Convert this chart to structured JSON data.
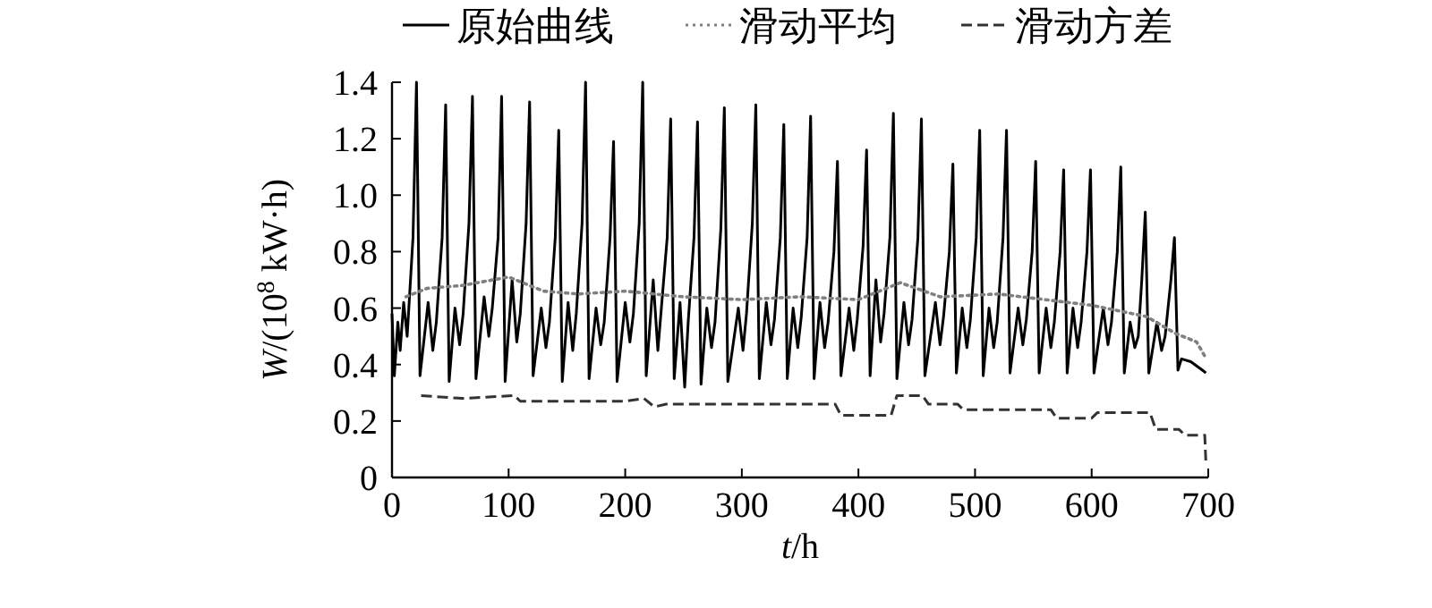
{
  "chart_data": {
    "type": "line",
    "xlabel": "*t*/h",
    "ylabel": "*W*/(10$^{8}$ kW·h)",
    "xlim": [
      0,
      700
    ],
    "xticks": [
      0,
      100,
      200,
      300,
      400,
      500,
      600,
      700
    ],
    "ylim": [
      0,
      1.4
    ],
    "yticks": [
      0,
      {
        "value": 0.2,
        "label": "0.2"
      },
      {
        "value": 0.4,
        "label": "0.4"
      },
      {
        "value": 0.6,
        "label": "0.6"
      },
      {
        "value": 0.8,
        "label": "0.8"
      },
      {
        "value": 1.0,
        "label": "1.0"
      },
      {
        "value": 1.2,
        "label": "1.2"
      },
      {
        "value": 1.4,
        "label": "1.4"
      }
    ],
    "legend": "top",
    "grid": false,
    "marker": "none",
    "series": [
      {
        "name": "原始曲线",
        "color": "#000000",
        "line_style": "solid",
        "x": [
          0,
          2,
          5,
          7,
          10,
          13,
          18,
          21,
          24,
          31,
          35,
          38,
          43,
          46,
          49,
          54,
          58,
          61,
          66,
          69,
          72,
          79,
          83,
          86,
          91,
          94,
          97,
          103,
          107,
          110,
          115,
          118,
          121,
          128,
          132,
          135,
          140,
          143,
          146,
          151,
          155,
          158,
          163,
          166,
          169,
          175,
          179,
          182,
          187,
          190,
          193,
          200,
          204,
          207,
          212,
          215,
          218,
          224,
          228,
          231,
          236,
          239,
          242,
          247,
          251,
          254,
          259,
          262,
          265,
          270,
          274,
          277,
          282,
          285,
          288,
          297,
          301,
          304,
          309,
          312,
          315,
          321,
          325,
          328,
          333,
          336,
          339,
          344,
          348,
          351,
          356,
          359,
          362,
          367,
          371,
          374,
          379,
          382,
          385,
          392,
          396,
          399,
          404,
          407,
          410,
          415,
          419,
          422,
          427,
          430,
          433,
          439,
          443,
          446,
          451,
          454,
          457,
          466,
          470,
          473,
          478,
          481,
          484,
          489,
          493,
          496,
          501,
          504,
          507,
          512,
          516,
          519,
          524,
          527,
          530,
          537,
          541,
          544,
          549,
          552,
          555,
          561,
          565,
          568,
          573,
          576,
          579,
          584,
          588,
          591,
          596,
          599,
          602,
          610,
          614,
          617,
          622,
          625,
          628,
          633,
          637,
          640,
          643,
          646,
          649,
          656,
          660,
          663,
          668,
          671,
          674,
          677,
          685,
          695,
          698
        ],
        "values": [
          0.58,
          0.36,
          0.55,
          0.45,
          0.62,
          0.5,
          0.85,
          1.4,
          0.36,
          0.62,
          0.45,
          0.55,
          0.85,
          1.32,
          0.34,
          0.6,
          0.47,
          0.58,
          0.9,
          1.35,
          0.35,
          0.64,
          0.5,
          0.6,
          0.85,
          1.35,
          0.34,
          0.7,
          0.48,
          0.58,
          0.9,
          1.33,
          0.36,
          0.6,
          0.46,
          0.55,
          0.85,
          1.23,
          0.34,
          0.62,
          0.45,
          0.58,
          0.9,
          1.4,
          0.35,
          0.6,
          0.47,
          0.55,
          0.85,
          1.19,
          0.34,
          0.62,
          0.48,
          0.58,
          0.9,
          1.4,
          0.36,
          0.7,
          0.45,
          0.6,
          0.85,
          1.27,
          0.35,
          0.62,
          0.32,
          0.55,
          0.85,
          1.26,
          0.33,
          0.6,
          0.46,
          0.55,
          0.88,
          1.31,
          0.34,
          0.6,
          0.45,
          0.58,
          0.9,
          1.32,
          0.35,
          0.62,
          0.47,
          0.56,
          0.85,
          1.25,
          0.35,
          0.6,
          0.46,
          0.57,
          0.85,
          1.28,
          0.35,
          0.62,
          0.46,
          0.55,
          0.8,
          1.12,
          0.36,
          0.6,
          0.45,
          0.56,
          0.82,
          1.16,
          0.36,
          0.7,
          0.48,
          0.58,
          0.85,
          1.29,
          0.35,
          0.62,
          0.47,
          0.56,
          0.85,
          1.27,
          0.36,
          0.62,
          0.47,
          0.57,
          0.8,
          1.11,
          0.37,
          0.6,
          0.46,
          0.56,
          0.85,
          1.23,
          0.36,
          0.6,
          0.46,
          0.55,
          0.85,
          1.23,
          0.37,
          0.6,
          0.47,
          0.56,
          0.8,
          1.12,
          0.37,
          0.6,
          0.46,
          0.55,
          0.8,
          1.09,
          0.37,
          0.6,
          0.46,
          0.55,
          0.8,
          1.09,
          0.37,
          0.6,
          0.47,
          0.55,
          0.8,
          1.1,
          0.37,
          0.55,
          0.46,
          0.5,
          0.7,
          0.94,
          0.37,
          0.55,
          0.45,
          0.5,
          0.7,
          0.85,
          0.38,
          0.42,
          0.41,
          0.38,
          0.37
        ]
      },
      {
        "name": "滑动平均",
        "color": "#808080",
        "line_style": "dotted",
        "x": [
          12,
          30,
          60,
          100,
          130,
          160,
          200,
          250,
          300,
          350,
          400,
          436,
          470,
          520,
          560,
          600,
          647,
          672,
          690,
          697
        ],
        "values": [
          0.64,
          0.67,
          0.68,
          0.71,
          0.66,
          0.65,
          0.66,
          0.64,
          0.63,
          0.64,
          0.63,
          0.69,
          0.64,
          0.65,
          0.63,
          0.61,
          0.57,
          0.51,
          0.48,
          0.43
        ]
      },
      {
        "name": "滑动方差",
        "color": "#333333",
        "line_style": "dashed",
        "x": [
          25,
          60,
          105,
          110,
          200,
          216,
          225,
          235,
          380,
          385,
          428,
          433,
          455,
          460,
          485,
          490,
          565,
          570,
          600,
          605,
          650,
          655,
          675,
          680,
          697,
          698
        ],
        "values": [
          0.29,
          0.28,
          0.29,
          0.27,
          0.27,
          0.28,
          0.25,
          0.26,
          0.26,
          0.22,
          0.22,
          0.29,
          0.29,
          0.26,
          0.26,
          0.24,
          0.24,
          0.21,
          0.21,
          0.23,
          0.23,
          0.17,
          0.17,
          0.15,
          0.15,
          0.05
        ]
      }
    ]
  }
}
